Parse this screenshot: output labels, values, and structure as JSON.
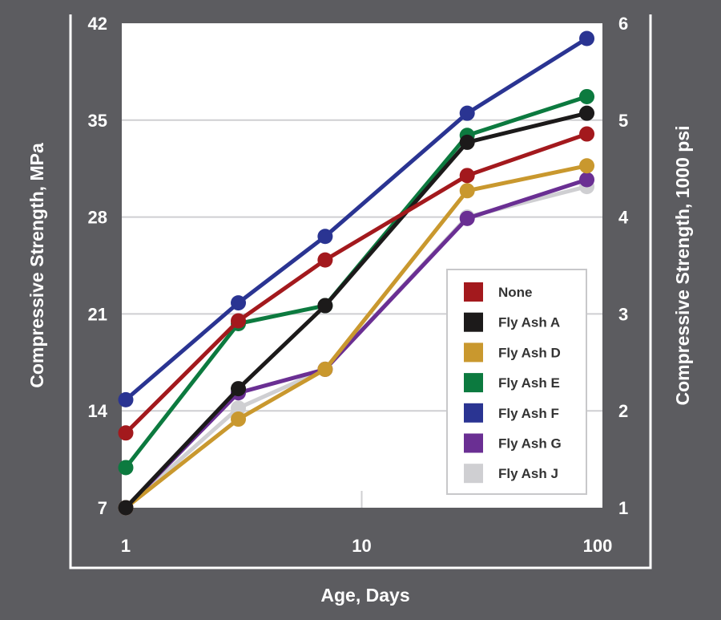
{
  "chart_data": {
    "type": "line",
    "xscale": "log",
    "xlim": [
      1,
      100
    ],
    "x_ticks": [
      "1",
      "10",
      "100"
    ],
    "xlabel": "Age, Days",
    "ylabel_left": "Compressive Strength, MPa",
    "ylabel_right": "Compressive Strength, 1000 psi",
    "ylim_left": [
      7,
      42
    ],
    "y_ticks_left": [
      "7",
      "14",
      "21",
      "28",
      "35",
      "42"
    ],
    "ylim_right": [
      1,
      6
    ],
    "y_ticks_right": [
      "1",
      "2",
      "3",
      "4",
      "5",
      "6"
    ],
    "grid": true,
    "legend_position": "lower-right",
    "x": [
      1,
      3,
      7,
      28,
      90
    ],
    "series": [
      {
        "name": "None",
        "color": "#a3191d",
        "values": [
          12.4,
          20.5,
          24.9,
          31.0,
          34.0
        ]
      },
      {
        "name": "Fly Ash A",
        "color": "#1c1a1a",
        "values": [
          7.0,
          15.6,
          21.6,
          33.4,
          35.5
        ]
      },
      {
        "name": "Fly Ash D",
        "color": "#c9982e",
        "values": [
          7.0,
          13.4,
          17.0,
          29.9,
          31.7
        ]
      },
      {
        "name": "Fly Ash E",
        "color": "#0c7a3f",
        "values": [
          9.9,
          20.3,
          21.6,
          33.9,
          36.7
        ]
      },
      {
        "name": "Fly Ash F",
        "color": "#2a3492",
        "values": [
          14.8,
          21.8,
          26.6,
          35.5,
          40.9
        ]
      },
      {
        "name": "Fly Ash G",
        "color": "#6a2f93",
        "values": [
          7.0,
          15.3,
          17.0,
          27.9,
          30.7
        ]
      },
      {
        "name": "Fly Ash J",
        "color": "#cfcfd2",
        "values": [
          7.0,
          14.2,
          17.0,
          28.0,
          30.2
        ]
      }
    ]
  }
}
